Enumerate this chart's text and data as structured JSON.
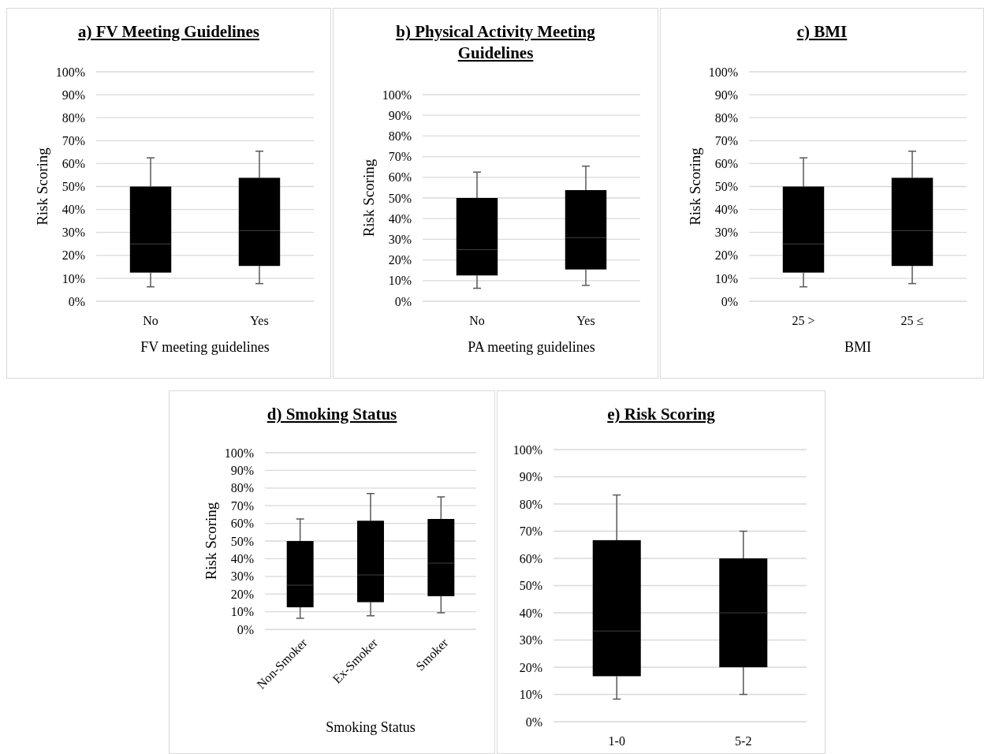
{
  "chart_data": [
    {
      "type": "box",
      "title": "a) FV Meeting Guidelines",
      "xlabel": "FV meeting guidelines",
      "ylabel": "Risk Scoring",
      "categories": [
        "No",
        "Yes"
      ],
      "color": "#000000",
      "ylim": [
        0,
        100
      ],
      "yticks": [
        {
          "value": 0,
          "label": "0%"
        },
        {
          "value": 10,
          "label": "10%"
        },
        {
          "value": 20,
          "label": "20%"
        },
        {
          "value": 30,
          "label": "30%"
        },
        {
          "value": 40,
          "label": "40%"
        },
        {
          "value": 50,
          "label": "50%"
        },
        {
          "value": 60,
          "label": "60%"
        },
        {
          "value": 70,
          "label": "70%"
        },
        {
          "value": 80,
          "label": "80%"
        },
        {
          "value": 90,
          "label": "90%"
        },
        {
          "value": 100,
          "label": "100%"
        }
      ],
      "grid": "y",
      "boxes": [
        {
          "low": 6.3,
          "q1": 12.5,
          "median": 25,
          "q3": 50,
          "high": 62.5
        },
        {
          "low": 7.7,
          "q1": 15.4,
          "median": 30.8,
          "q3": 53.8,
          "high": 65.4
        }
      ]
    },
    {
      "type": "box",
      "title": "b) Physical Activity Meeting Guidelines",
      "xlabel": "PA meeting guidelines",
      "ylabel": "Risk Scoring",
      "categories": [
        "No",
        "Yes"
      ],
      "color": "#000000",
      "ylim": [
        0,
        100
      ],
      "yticks": [
        {
          "value": 0,
          "label": "0%"
        },
        {
          "value": 10,
          "label": "10%"
        },
        {
          "value": 20,
          "label": "20%"
        },
        {
          "value": 30,
          "label": "30%"
        },
        {
          "value": 40,
          "label": "40%"
        },
        {
          "value": 50,
          "label": "50%"
        },
        {
          "value": 60,
          "label": "60%"
        },
        {
          "value": 70,
          "label": "70%"
        },
        {
          "value": 80,
          "label": "80%"
        },
        {
          "value": 90,
          "label": "90%"
        },
        {
          "value": 100,
          "label": "100%"
        }
      ],
      "grid": "y",
      "boxes": [
        {
          "low": 6.3,
          "q1": 12.5,
          "median": 25,
          "q3": 50,
          "high": 62.5
        },
        {
          "low": 7.7,
          "q1": 15.4,
          "median": 30.8,
          "q3": 53.8,
          "high": 65.4
        }
      ]
    },
    {
      "type": "box",
      "title": "c) BMI",
      "xlabel": "BMI",
      "ylabel": "Risk Scoring",
      "categories": [
        "25 >",
        "25 ≤"
      ],
      "color": "#000000",
      "ylim": [
        0,
        100
      ],
      "yticks": [
        {
          "value": 0,
          "label": "0%"
        },
        {
          "value": 10,
          "label": "10%"
        },
        {
          "value": 20,
          "label": "20%"
        },
        {
          "value": 30,
          "label": "30%"
        },
        {
          "value": 40,
          "label": "40%"
        },
        {
          "value": 50,
          "label": "50%"
        },
        {
          "value": 60,
          "label": "60%"
        },
        {
          "value": 70,
          "label": "70%"
        },
        {
          "value": 80,
          "label": "80%"
        },
        {
          "value": 90,
          "label": "90%"
        },
        {
          "value": 100,
          "label": "100%"
        }
      ],
      "grid": "y",
      "boxes": [
        {
          "low": 6.3,
          "q1": 12.5,
          "median": 25,
          "q3": 50,
          "high": 62.5
        },
        {
          "low": 7.7,
          "q1": 15.4,
          "median": 30.8,
          "q3": 53.8,
          "high": 65.4
        }
      ]
    },
    {
      "type": "box",
      "title": "d) Smoking Status",
      "xlabel": "Smoking Status",
      "ylabel": "Risk Scoring",
      "categories": [
        "Non-Smoker",
        "Ex-Smoker",
        "Smoker"
      ],
      "color": "#000000",
      "ylim": [
        0,
        100
      ],
      "yticks": [
        {
          "value": 0,
          "label": "0%"
        },
        {
          "value": 10,
          "label": "10%"
        },
        {
          "value": 20,
          "label": "20%"
        },
        {
          "value": 30,
          "label": "30%"
        },
        {
          "value": 40,
          "label": "40%"
        },
        {
          "value": 50,
          "label": "50%"
        },
        {
          "value": 60,
          "label": "60%"
        },
        {
          "value": 70,
          "label": "70%"
        },
        {
          "value": 80,
          "label": "80%"
        },
        {
          "value": 90,
          "label": "90%"
        },
        {
          "value": 100,
          "label": "100%"
        }
      ],
      "grid": "y",
      "boxes": [
        {
          "low": 6.3,
          "q1": 12.5,
          "median": 25,
          "q3": 50,
          "high": 62.5
        },
        {
          "low": 7.7,
          "q1": 15.4,
          "median": 30.8,
          "q3": 61.5,
          "high": 76.9
        },
        {
          "low": 9.4,
          "q1": 18.8,
          "median": 37.5,
          "q3": 62.5,
          "high": 75
        }
      ]
    },
    {
      "type": "box",
      "title": "e) Risk Scoring",
      "categories": [
        "1-0",
        "5-2"
      ],
      "color": "#000000",
      "ylim": [
        0,
        100
      ],
      "yticks": [
        {
          "value": 0,
          "label": "0%"
        },
        {
          "value": 10,
          "label": "10%"
        },
        {
          "value": 20,
          "label": "20%"
        },
        {
          "value": 30,
          "label": "30%"
        },
        {
          "value": 40,
          "label": "40%"
        },
        {
          "value": 50,
          "label": "50%"
        },
        {
          "value": 60,
          "label": "60%"
        },
        {
          "value": 70,
          "label": "70%"
        },
        {
          "value": 80,
          "label": "80%"
        },
        {
          "value": 90,
          "label": "90%"
        },
        {
          "value": 100,
          "label": "100%"
        }
      ],
      "grid": "y",
      "boxes": [
        {
          "low": 8.3,
          "q1": 16.7,
          "median": 33.3,
          "q3": 66.7,
          "high": 83.3
        },
        {
          "low": 10,
          "q1": 20,
          "median": 40,
          "q3": 60,
          "high": 70
        }
      ]
    }
  ]
}
